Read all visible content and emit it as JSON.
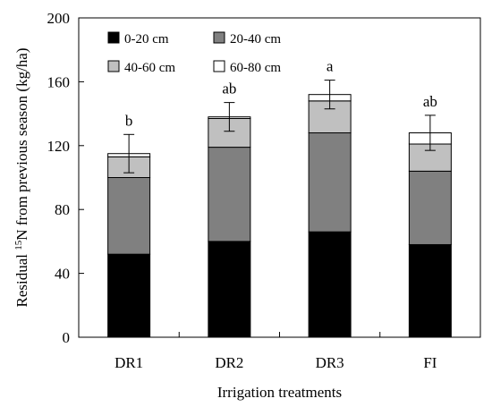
{
  "chart_data": {
    "type": "bar",
    "stacked": true,
    "categories": [
      "DR1",
      "DR2",
      "DR3",
      "FI"
    ],
    "xlabel": "Irrigation treatments",
    "ylabel": {
      "prefix": "Residual ",
      "superscript": "15",
      "suffix": "N from previous season (kg/ha)"
    },
    "ylim": [
      0,
      200
    ],
    "yticks": [
      0,
      40,
      80,
      120,
      160,
      200
    ],
    "grid": false,
    "legend_position": "top-left",
    "series": [
      {
        "name": "0-20 cm",
        "color": "#000000",
        "values": [
          52,
          60,
          66,
          58
        ]
      },
      {
        "name": "20-40 cm",
        "color": "#808080",
        "values": [
          48,
          59,
          62,
          46
        ]
      },
      {
        "name": "40-60 cm",
        "color": "#c0c0c0",
        "values": [
          13,
          18,
          20,
          17
        ]
      },
      {
        "name": "60-80 cm",
        "color": "#ffffff",
        "values": [
          2,
          1,
          4,
          7
        ]
      }
    ],
    "error_bars": [
      12,
      9,
      9,
      11
    ],
    "significance": [
      "b",
      "ab",
      "a",
      "ab"
    ]
  }
}
